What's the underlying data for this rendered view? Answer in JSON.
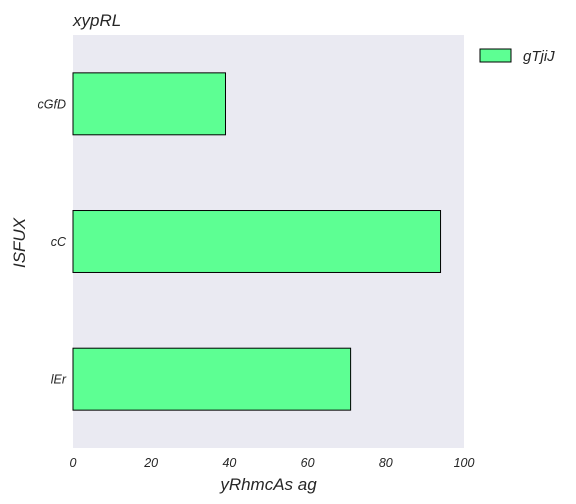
{
  "chart_data": {
    "type": "bar",
    "orientation": "horizontal",
    "title": "xypRL",
    "xlabel": "yRhmcAs ag",
    "ylabel": "ISFUX",
    "categories": [
      "cGfD",
      "cC",
      "lEr"
    ],
    "series": [
      {
        "name": "gTjiJ",
        "values": [
          39,
          94,
          71
        ],
        "color": "#5dff93"
      }
    ],
    "xlim": [
      0,
      100
    ],
    "xticks": [
      0,
      20,
      40,
      60,
      80,
      100
    ],
    "grid": false,
    "legend_position": "top-right",
    "plot_background": "#eaeaf2",
    "bar_edge_color": "#000000"
  }
}
